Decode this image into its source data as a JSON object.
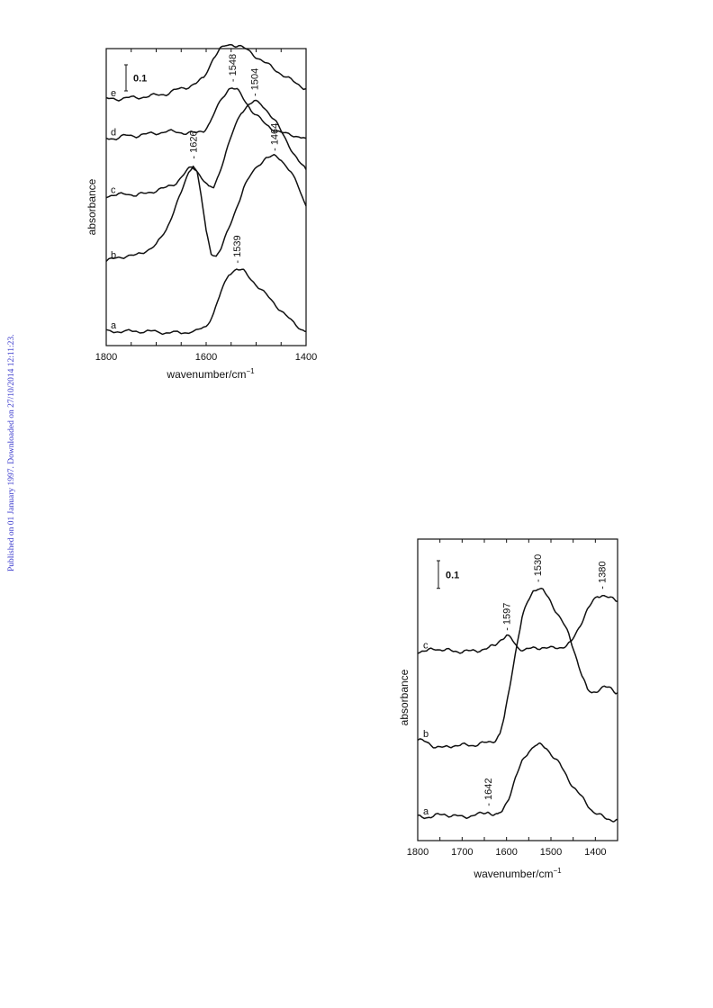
{
  "published_note": "Published on 01 January 1997. Downloaded on 27/10/2014 12:11:23.",
  "chart_data": [
    {
      "type": "line",
      "xlabel": "wavenumber/cm",
      "xlabel_sup": "−1",
      "ylabel": "absorbance",
      "xlim": [
        1800,
        1400
      ],
      "x_ticks": [
        1800,
        1600,
        1400
      ],
      "x_minor_ticks": [
        1800,
        1750,
        1700,
        1650,
        1600,
        1550,
        1500,
        1450,
        1400
      ],
      "scale_bar_label": "0.1",
      "scale_bar_value": 0.1,
      "unit": 0.0148,
      "baselines": {
        "a": 0.02,
        "b": 0.29,
        "c": 0.54,
        "d": 0.76,
        "e": 0.91
      },
      "series": [
        {
          "name": "a",
          "points": [
            [
              1800,
              0.02
            ],
            [
              1770,
              0.02
            ],
            [
              1740,
              0.02
            ],
            [
              1710,
              0.02
            ],
            [
              1680,
              0.015
            ],
            [
              1650,
              0.015
            ],
            [
              1620,
              0.02
            ],
            [
              1600,
              0.04
            ],
            [
              1585,
              0.09
            ],
            [
              1570,
              0.17
            ],
            [
              1555,
              0.24
            ],
            [
              1539,
              0.26
            ],
            [
              1525,
              0.25
            ],
            [
              1510,
              0.22
            ],
            [
              1490,
              0.18
            ],
            [
              1470,
              0.14
            ],
            [
              1450,
              0.1
            ],
            [
              1430,
              0.06
            ],
            [
              1410,
              0.03
            ],
            [
              1400,
              0.02
            ]
          ]
        },
        {
          "name": "b",
          "points": [
            [
              1800,
              0.29
            ],
            [
              1780,
              0.3
            ],
            [
              1760,
              0.31
            ],
            [
              1740,
              0.31
            ],
            [
              1720,
              0.33
            ],
            [
              1700,
              0.35
            ],
            [
              1680,
              0.41
            ],
            [
              1665,
              0.48
            ],
            [
              1650,
              0.55
            ],
            [
              1635,
              0.63
            ],
            [
              1626,
              0.66
            ],
            [
              1618,
              0.63
            ],
            [
              1610,
              0.54
            ],
            [
              1600,
              0.4
            ],
            [
              1590,
              0.32
            ],
            [
              1580,
              0.31
            ],
            [
              1570,
              0.34
            ],
            [
              1555,
              0.41
            ],
            [
              1540,
              0.49
            ],
            [
              1525,
              0.57
            ],
            [
              1510,
              0.62
            ],
            [
              1495,
              0.66
            ],
            [
              1480,
              0.685
            ],
            [
              1464,
              0.69
            ],
            [
              1450,
              0.68
            ],
            [
              1430,
              0.63
            ],
            [
              1415,
              0.57
            ],
            [
              1400,
              0.5
            ]
          ]
        },
        {
          "name": "c",
          "points": [
            [
              1800,
              0.54
            ],
            [
              1780,
              0.54
            ],
            [
              1760,
              0.55
            ],
            [
              1740,
              0.54
            ],
            [
              1720,
              0.55
            ],
            [
              1700,
              0.56
            ],
            [
              1680,
              0.57
            ],
            [
              1660,
              0.59
            ],
            [
              1645,
              0.62
            ],
            [
              1635,
              0.64
            ],
            [
              1628,
              0.65
            ],
            [
              1620,
              0.64
            ],
            [
              1605,
              0.6
            ],
            [
              1595,
              0.57
            ],
            [
              1585,
              0.57
            ],
            [
              1575,
              0.62
            ],
            [
              1560,
              0.71
            ],
            [
              1545,
              0.79
            ],
            [
              1530,
              0.86
            ],
            [
              1515,
              0.89
            ],
            [
              1504,
              0.9
            ],
            [
              1490,
              0.89
            ],
            [
              1475,
              0.86
            ],
            [
              1460,
              0.82
            ],
            [
              1445,
              0.77
            ],
            [
              1430,
              0.72
            ],
            [
              1415,
              0.67
            ],
            [
              1400,
              0.64
            ]
          ]
        },
        {
          "name": "d",
          "points": [
            [
              1800,
              0.76
            ],
            [
              1780,
              0.76
            ],
            [
              1760,
              0.77
            ],
            [
              1740,
              0.77
            ],
            [
              1720,
              0.775
            ],
            [
              1700,
              0.78
            ],
            [
              1680,
              0.785
            ],
            [
              1660,
              0.785
            ],
            [
              1640,
              0.78
            ],
            [
              1620,
              0.78
            ],
            [
              1605,
              0.79
            ],
            [
              1592,
              0.82
            ],
            [
              1580,
              0.87
            ],
            [
              1566,
              0.92
            ],
            [
              1555,
              0.95
            ],
            [
              1548,
              0.955
            ],
            [
              1538,
              0.945
            ],
            [
              1525,
              0.91
            ],
            [
              1510,
              0.87
            ],
            [
              1495,
              0.84
            ],
            [
              1480,
              0.81
            ],
            [
              1460,
              0.79
            ],
            [
              1440,
              0.775
            ],
            [
              1420,
              0.77
            ],
            [
              1400,
              0.76
            ]
          ]
        },
        {
          "name": "e",
          "points": [
            [
              1800,
              0.91
            ],
            [
              1780,
              0.91
            ],
            [
              1760,
              0.915
            ],
            [
              1740,
              0.915
            ],
            [
              1720,
              0.92
            ],
            [
              1700,
              0.925
            ],
            [
              1680,
              0.93
            ],
            [
              1660,
              0.945
            ],
            [
              1640,
              0.955
            ],
            [
              1620,
              0.97
            ],
            [
              1605,
              0.99
            ],
            [
              1595,
              1.03
            ],
            [
              1585,
              1.07
            ],
            [
              1572,
              1.1
            ],
            [
              1560,
              1.115
            ],
            [
              1548,
              1.12
            ],
            [
              1535,
              1.115
            ],
            [
              1520,
              1.1
            ],
            [
              1505,
              1.08
            ],
            [
              1490,
              1.06
            ],
            [
              1475,
              1.04
            ],
            [
              1460,
              1.02
            ],
            [
              1440,
              0.995
            ],
            [
              1420,
              0.97
            ],
            [
              1400,
              0.95
            ]
          ]
        }
      ],
      "annotations": [
        {
          "label": "1539",
          "x": 1539,
          "y": 0.26
        },
        {
          "label": "1626",
          "x": 1626,
          "y": 0.66
        },
        {
          "label": "1464",
          "x": 1464,
          "y": 0.69
        },
        {
          "label": "1504",
          "x": 1504,
          "y": 0.9
        },
        {
          "label": "1548",
          "x": 1548,
          "y": 0.955
        }
      ]
    },
    {
      "type": "line",
      "xlabel": "wavenumber/cm",
      "xlabel_sup": "−1",
      "ylabel": "absorbance",
      "xlim": [
        1800,
        1350
      ],
      "x_ticks": [
        1800,
        1700,
        1600,
        1500,
        1400
      ],
      "x_minor_ticks": [
        1800,
        1750,
        1700,
        1650,
        1600,
        1550,
        1500,
        1450,
        1400
      ],
      "scale_bar_label": "0.1",
      "scale_bar_value": 0.1,
      "unit": 0.0148,
      "baselines": {
        "a": 0.02,
        "b": 0.3,
        "c": 0.62
      },
      "series": [
        {
          "name": "a",
          "points": [
            [
              1800,
              0.02
            ],
            [
              1780,
              0.02
            ],
            [
              1760,
              0.025
            ],
            [
              1740,
              0.03
            ],
            [
              1720,
              0.025
            ],
            [
              1700,
              0.02
            ],
            [
              1680,
              0.025
            ],
            [
              1660,
              0.03
            ],
            [
              1642,
              0.04
            ],
            [
              1630,
              0.03
            ],
            [
              1620,
              0.025
            ],
            [
              1610,
              0.04
            ],
            [
              1595,
              0.09
            ],
            [
              1580,
              0.16
            ],
            [
              1565,
              0.22
            ],
            [
              1550,
              0.26
            ],
            [
              1535,
              0.28
            ],
            [
              1525,
              0.28
            ],
            [
              1510,
              0.27
            ],
            [
              1495,
              0.24
            ],
            [
              1480,
              0.21
            ],
            [
              1465,
              0.17
            ],
            [
              1450,
              0.13
            ],
            [
              1435,
              0.1
            ],
            [
              1420,
              0.07
            ],
            [
              1405,
              0.04
            ],
            [
              1390,
              0.025
            ],
            [
              1375,
              0.015
            ],
            [
              1360,
              0.01
            ],
            [
              1350,
              0.01
            ]
          ]
        },
        {
          "name": "b",
          "points": [
            [
              1800,
              0.3
            ],
            [
              1780,
              0.29
            ],
            [
              1760,
              0.275
            ],
            [
              1740,
              0.27
            ],
            [
              1720,
              0.28
            ],
            [
              1700,
              0.28
            ],
            [
              1680,
              0.28
            ],
            [
              1660,
              0.285
            ],
            [
              1640,
              0.29
            ],
            [
              1625,
              0.3
            ],
            [
              1615,
              0.32
            ],
            [
              1605,
              0.38
            ],
            [
              1595,
              0.47
            ],
            [
              1585,
              0.57
            ],
            [
              1575,
              0.66
            ],
            [
              1565,
              0.74
            ],
            [
              1552,
              0.8
            ],
            [
              1540,
              0.84
            ],
            [
              1530,
              0.85
            ],
            [
              1518,
              0.84
            ],
            [
              1505,
              0.81
            ],
            [
              1490,
              0.77
            ],
            [
              1475,
              0.73
            ],
            [
              1460,
              0.68
            ],
            [
              1445,
              0.61
            ],
            [
              1430,
              0.53
            ],
            [
              1418,
              0.48
            ],
            [
              1408,
              0.47
            ],
            [
              1395,
              0.48
            ],
            [
              1380,
              0.49
            ],
            [
              1365,
              0.485
            ],
            [
              1350,
              0.47
            ]
          ]
        },
        {
          "name": "c",
          "points": [
            [
              1800,
              0.62
            ],
            [
              1780,
              0.62
            ],
            [
              1760,
              0.63
            ],
            [
              1740,
              0.625
            ],
            [
              1720,
              0.62
            ],
            [
              1700,
              0.62
            ],
            [
              1680,
              0.62
            ],
            [
              1660,
              0.625
            ],
            [
              1640,
              0.63
            ],
            [
              1625,
              0.645
            ],
            [
              1612,
              0.665
            ],
            [
              1600,
              0.675
            ],
            [
              1590,
              0.665
            ],
            [
              1575,
              0.635
            ],
            [
              1560,
              0.625
            ],
            [
              1540,
              0.63
            ],
            [
              1520,
              0.635
            ],
            [
              1500,
              0.63
            ],
            [
              1480,
              0.635
            ],
            [
              1465,
              0.64
            ],
            [
              1455,
              0.65
            ],
            [
              1445,
              0.68
            ],
            [
              1430,
              0.73
            ],
            [
              1418,
              0.77
            ],
            [
              1405,
              0.8
            ],
            [
              1395,
              0.82
            ],
            [
              1385,
              0.825
            ],
            [
              1375,
              0.82
            ],
            [
              1365,
              0.81
            ],
            [
              1350,
              0.8
            ]
          ]
        }
      ],
      "annotations": [
        {
          "label": "1642",
          "x": 1642,
          "y": 0.04
        },
        {
          "label": "1530",
          "x": 1530,
          "y": 0.85
        },
        {
          "label": "1597",
          "x": 1600,
          "y": 0.675
        },
        {
          "label": "1380",
          "x": 1385,
          "y": 0.825
        }
      ]
    }
  ]
}
